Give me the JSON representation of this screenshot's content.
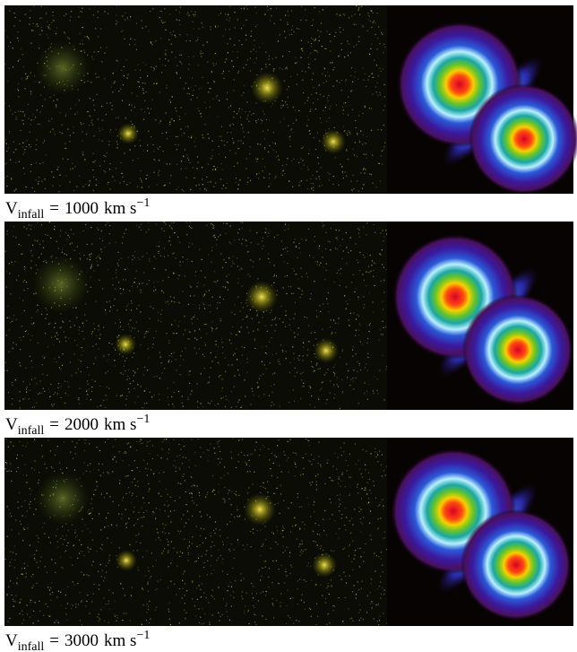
{
  "panels": [
    {
      "symbol": "V",
      "subscript": "infall",
      "relation": "=",
      "value": 1000,
      "unit": "km s",
      "exponent": "−1"
    },
    {
      "symbol": "V",
      "subscript": "infall",
      "relation": "=",
      "value": 2000,
      "unit": "km s",
      "exponent": "−1"
    },
    {
      "symbol": "V",
      "subscript": "infall",
      "relation": "=",
      "value": 3000,
      "unit": "km s",
      "exponent": "−1"
    }
  ]
}
